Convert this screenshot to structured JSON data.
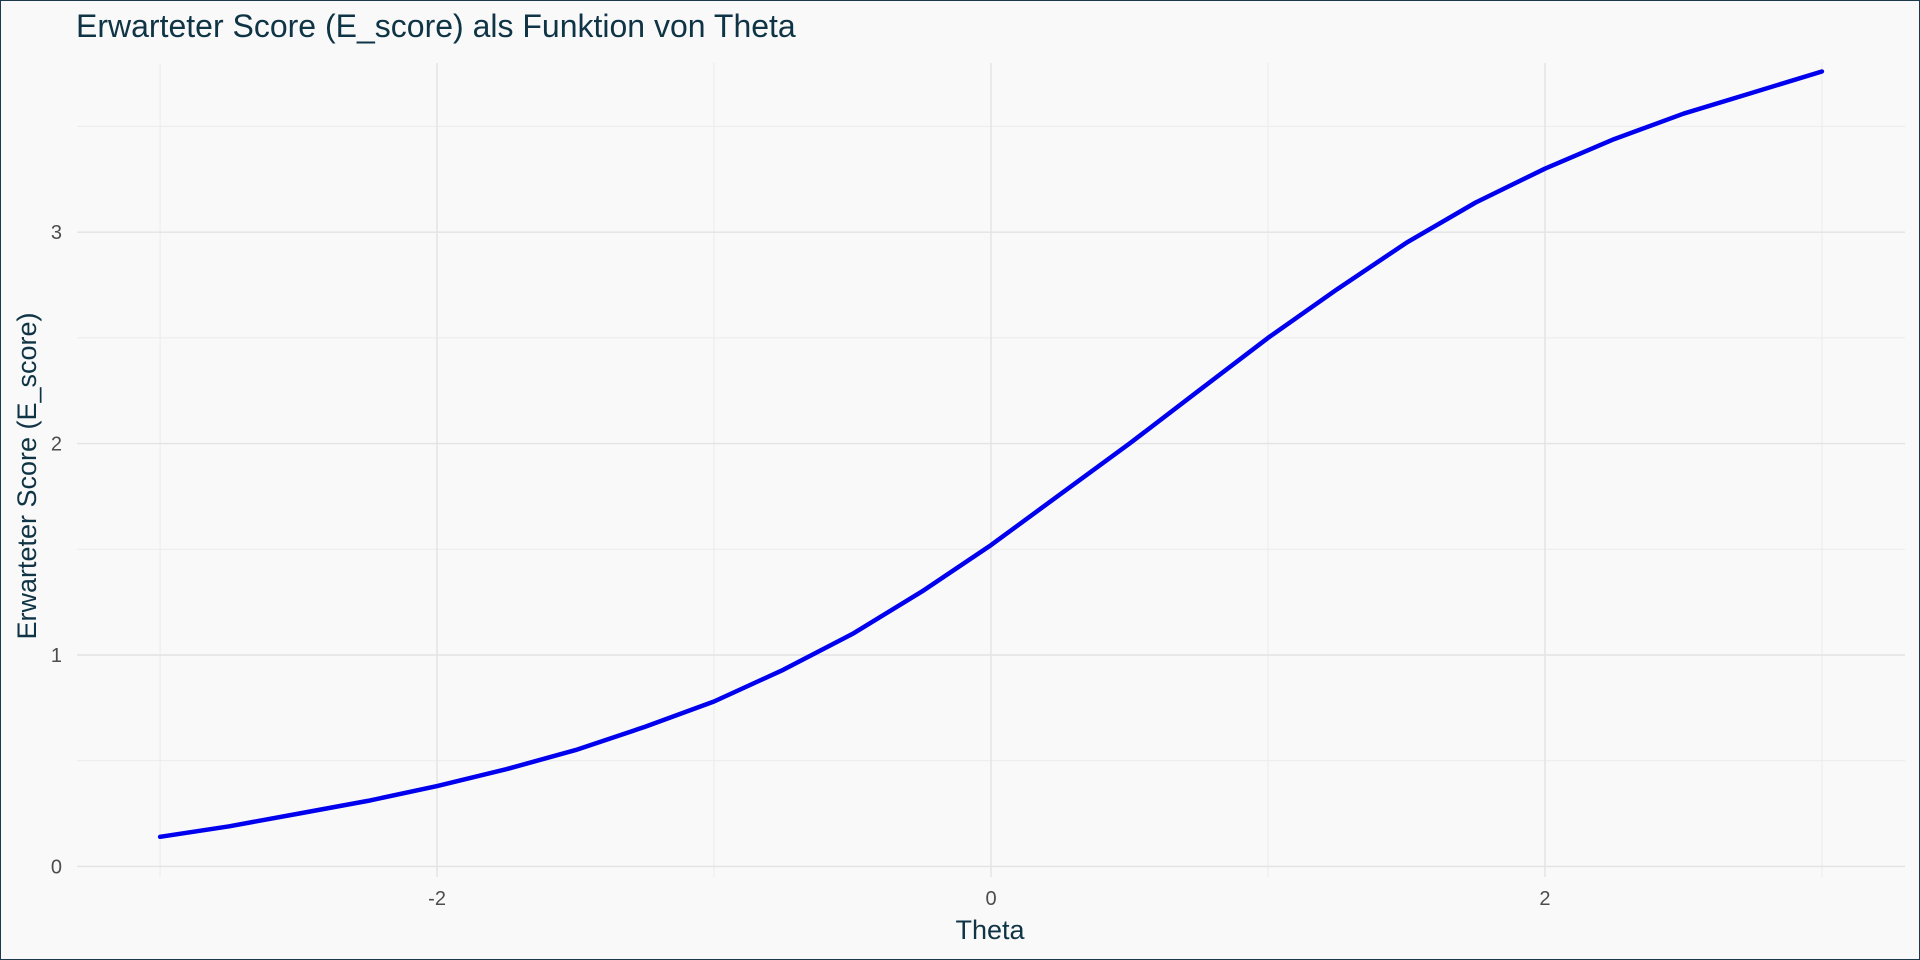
{
  "chart_data": {
    "type": "line",
    "title": "Erwarteter Score (E_score) als Funktion von Theta",
    "xlabel": "Theta",
    "ylabel": "Erwarteter Score (E_score)",
    "xlim": [
      -3.3,
      3.3
    ],
    "ylim": [
      -0.05,
      3.8
    ],
    "x_ticks": [
      -2,
      0,
      2
    ],
    "x_tick_labels": [
      "-2",
      "0",
      "2"
    ],
    "y_ticks": [
      0,
      1,
      2,
      3
    ],
    "y_tick_labels": [
      "0",
      "1",
      "2",
      "3"
    ],
    "grid": true,
    "legend": "none",
    "series": [
      {
        "color": "#0000ee",
        "x": [
          -3.0,
          -2.75,
          -2.5,
          -2.25,
          -2.0,
          -1.75,
          -1.5,
          -1.25,
          -1.0,
          -0.75,
          -0.5,
          -0.25,
          0.0,
          0.25,
          0.5,
          0.75,
          1.0,
          1.25,
          1.5,
          1.75,
          2.0,
          2.25,
          2.5,
          2.75,
          3.0
        ],
        "y": [
          0.14,
          0.19,
          0.25,
          0.31,
          0.38,
          0.46,
          0.55,
          0.66,
          0.78,
          0.93,
          1.1,
          1.3,
          1.52,
          1.76,
          2.0,
          2.25,
          2.5,
          2.73,
          2.95,
          3.14,
          3.3,
          3.44,
          3.56,
          3.66,
          3.76
        ]
      }
    ]
  }
}
